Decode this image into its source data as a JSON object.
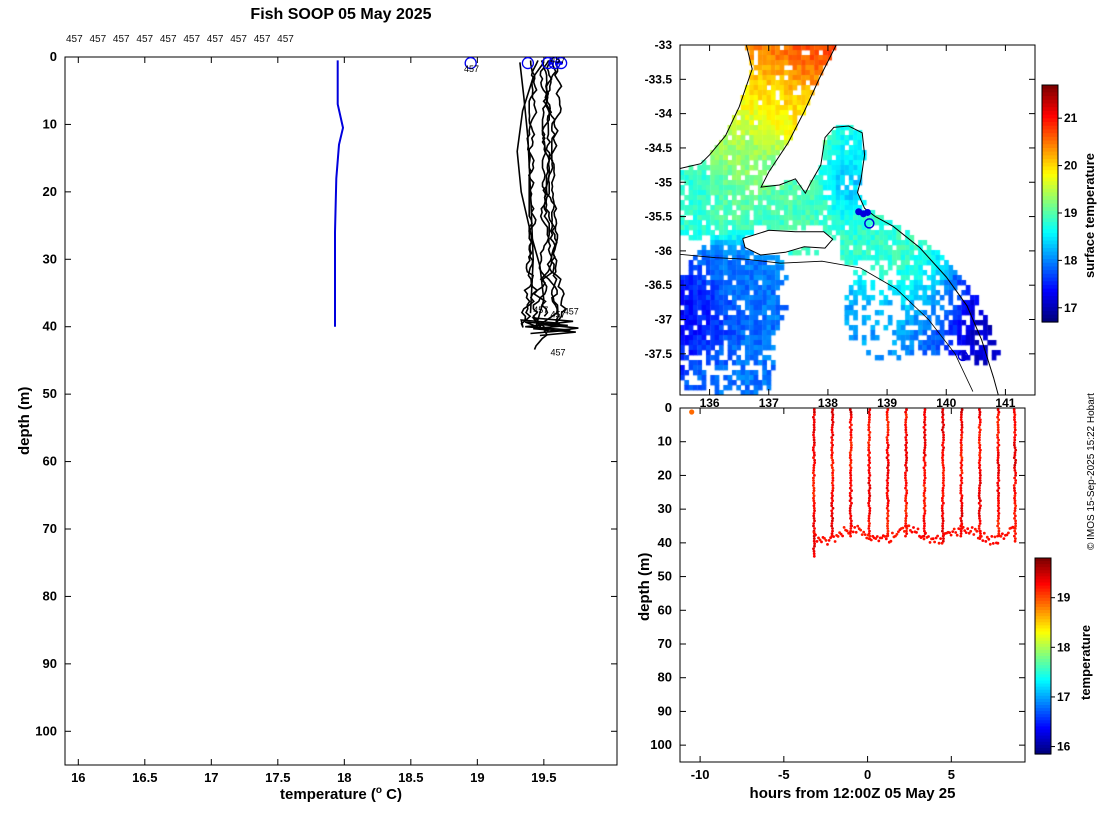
{
  "figure": {
    "title": "Fish SOOP 05 May 2025",
    "copyright": "© IMOS 15-Sep-2025 15:22 Hobart"
  },
  "chart_data": [
    {
      "id": "profile_plot",
      "type": "line",
      "title": "Fish SOOP 05 May 2025",
      "xlabel": "temperature (o C)",
      "xlabel_parts": {
        "pre": "temperature (",
        "sup": "o",
        "post": " C)"
      },
      "ylabel": "depth (m)",
      "xlim": [
        15.9,
        20.05
      ],
      "ylim": [
        0,
        105
      ],
      "xticks": [
        16,
        16.5,
        17,
        17.5,
        18,
        18.5,
        19,
        19.5
      ],
      "yticks": [
        0,
        10,
        20,
        30,
        40,
        50,
        60,
        70,
        80,
        90,
        100
      ],
      "top_labels_text": "457 457 457 457 457 457 457 457 457 457",
      "series": [
        {
          "name": "reference-ctd-profile",
          "color": "#0000dd",
          "points": [
            [
              17.95,
              0.5
            ],
            [
              17.95,
              7
            ],
            [
              17.99,
              10.5
            ],
            [
              17.96,
              13
            ],
            [
              17.94,
              18
            ],
            [
              17.93,
              26
            ],
            [
              17.93,
              40
            ]
          ]
        },
        {
          "name": "fish-soop-profiles",
          "color": "#000000",
          "random_profiles": [
            {
              "base": 19.4,
              "seed": 11,
              "maxdepth": 40.5,
              "tail": [
                19.33,
                19.62,
                19.36,
                19.7,
                19.4
              ]
            },
            {
              "base": 19.45,
              "seed": 22,
              "maxdepth": 39.5
            },
            {
              "base": 19.48,
              "seed": 33,
              "maxdepth": 40.8,
              "tail": [
                19.36,
                19.68,
                19.42,
                19.74,
                19.47
              ]
            },
            {
              "base": 19.52,
              "seed": 44,
              "maxdepth": 38.8
            },
            {
              "base": 19.55,
              "seed": 55,
              "maxdepth": 40.2,
              "tail": [
                19.42,
                19.72,
                19.5,
                19.76,
                19.55
              ]
            },
            {
              "base": 19.58,
              "seed": 66,
              "maxdepth": 43.5
            },
            {
              "base": 19.62,
              "seed": 77,
              "maxdepth": 39.8
            }
          ],
          "explicit_profiles": [
            {
              "points": [
                [
                  19.5,
                  0.8
                ],
                [
                  19.42,
                  3
                ],
                [
                  19.34,
                  8
                ],
                [
                  19.3,
                  14
                ],
                [
                  19.33,
                  20
                ],
                [
                  19.4,
                  26
                ],
                [
                  19.47,
                  31
                ],
                [
                  19.5,
                  36
                ],
                [
                  19.44,
                  40
                ]
              ]
            },
            {
              "points": [
                [
                  19.32,
                  0.8
                ],
                [
                  19.35,
                  6
                ],
                [
                  19.38,
                  12
                ],
                [
                  19.4,
                  20
                ],
                [
                  19.42,
                  30
                ],
                [
                  19.4,
                  38
                ]
              ]
            }
          ]
        }
      ],
      "markers": {
        "color": "#0000ee",
        "circles": [
          [
            18.95,
            0.9
          ],
          [
            19.38,
            0.9
          ],
          [
            19.53,
            0.9
          ],
          [
            19.58,
            0.9
          ],
          [
            19.63,
            0.9
          ]
        ],
        "dots": [
          [
            19.55,
            0.9
          ],
          [
            19.6,
            0.9
          ],
          [
            19.63,
            0.9
          ]
        ]
      },
      "annotations": [
        {
          "text": "457",
          "x": 18.9,
          "y": 2.2
        },
        {
          "text": "457",
          "x": 19.55,
          "y": 0.9
        },
        {
          "text": "457",
          "x": 19.42,
          "y": 38.0
        },
        {
          "text": "457",
          "x": 19.55,
          "y": 38.6
        },
        {
          "text": "457",
          "x": 19.65,
          "y": 38.2
        },
        {
          "text": "457",
          "x": 19.55,
          "y": 44.3
        }
      ]
    },
    {
      "id": "sst_map",
      "type": "heatmap",
      "xlim": [
        135.5,
        141.5
      ],
      "ylim": [
        -33.0,
        -38.1
      ],
      "xticks": [
        136,
        137,
        138,
        139,
        140,
        141
      ],
      "yticks": [
        -33,
        -33.5,
        -34,
        -34.5,
        -35,
        -35.5,
        -36,
        -36.5,
        -37,
        -37.5
      ],
      "colorbar": {
        "label": "surface temperature",
        "ticks": [
          17,
          18,
          19,
          20,
          21
        ],
        "range": [
          16.7,
          21.7
        ]
      },
      "marker_color": "#0000dd",
      "sst_blobs": [
        {
          "lon": 137.5,
          "lat": -33.05,
          "r": 0.5,
          "t": 20.7
        },
        {
          "lon": 137.15,
          "lat": -33.55,
          "r": 0.5,
          "t": 20.2
        },
        {
          "lon": 137.35,
          "lat": -34.1,
          "r": 0.5,
          "t": 19.9
        },
        {
          "lon": 136.9,
          "lat": -34.0,
          "r": 0.45,
          "t": 19.7
        },
        {
          "lon": 136.75,
          "lat": -34.55,
          "r": 0.45,
          "t": 19.3
        },
        {
          "lon": 137.1,
          "lat": -34.8,
          "r": 0.4,
          "t": 19.0
        },
        {
          "lon": 137.6,
          "lat": -35.35,
          "r": 0.45,
          "t": 18.9
        },
        {
          "lon": 138.3,
          "lat": -34.5,
          "r": 0.35,
          "t": 18.6
        },
        {
          "lon": 138.35,
          "lat": -35.0,
          "r": 0.35,
          "t": 18.3
        },
        {
          "lon": 138.9,
          "lat": -35.8,
          "r": 0.45,
          "t": 18.8
        },
        {
          "lon": 139.4,
          "lat": -36.25,
          "r": 0.55,
          "t": 18.9
        },
        {
          "lon": 139.9,
          "lat": -36.35,
          "r": 0.4,
          "t": 18.6
        },
        {
          "lon": 139.95,
          "lat": -36.75,
          "r": 0.5,
          "t": 17.7
        },
        {
          "lon": 140.35,
          "lat": -36.45,
          "r": 0.35,
          "t": 17.1
        },
        {
          "lon": 140.55,
          "lat": -37.0,
          "r": 0.4,
          "t": 17.0
        },
        {
          "lon": 139.0,
          "lat": -36.9,
          "r": 0.45,
          "t": 18.1
        },
        {
          "lon": 136.45,
          "lat": -36.6,
          "r": 0.55,
          "t": 17.9
        },
        {
          "lon": 135.85,
          "lat": -37.05,
          "r": 0.5,
          "t": 17.3
        },
        {
          "lon": 136.3,
          "lat": -37.6,
          "r": 0.5,
          "t": 17.9
        },
        {
          "lon": 135.75,
          "lat": -35.25,
          "r": 0.35,
          "t": 18.8
        },
        {
          "lon": 136.35,
          "lat": -35.35,
          "r": 0.35,
          "t": 19.0
        }
      ],
      "land_polygons": [
        [
          [
            135.5,
            -33.0
          ],
          [
            136.62,
            -33.0
          ],
          [
            136.72,
            -33.35
          ],
          [
            136.5,
            -33.9
          ],
          [
            136.27,
            -34.32
          ],
          [
            136.0,
            -34.6
          ],
          [
            135.85,
            -34.73
          ],
          [
            135.5,
            -34.8
          ]
        ],
        [
          [
            138.14,
            -33.0
          ],
          [
            141.5,
            -33.0
          ],
          [
            141.5,
            -38.1
          ],
          [
            141.05,
            -38.1
          ],
          [
            140.98,
            -37.75
          ],
          [
            140.78,
            -37.2
          ],
          [
            140.5,
            -36.65
          ],
          [
            140.18,
            -36.28
          ],
          [
            139.7,
            -35.9
          ],
          [
            139.15,
            -35.6
          ],
          [
            138.85,
            -35.47
          ],
          [
            138.68,
            -35.36
          ],
          [
            138.5,
            -35.15
          ],
          [
            138.56,
            -34.95
          ],
          [
            138.62,
            -34.6
          ],
          [
            138.58,
            -34.28
          ],
          [
            138.35,
            -34.18
          ],
          [
            138.1,
            -34.2
          ],
          [
            137.95,
            -34.35
          ],
          [
            137.88,
            -34.75
          ],
          [
            137.7,
            -35.02
          ],
          [
            137.62,
            -35.16
          ],
          [
            137.45,
            -34.95
          ],
          [
            137.18,
            -35.04
          ],
          [
            136.87,
            -35.07
          ],
          [
            137.0,
            -34.85
          ],
          [
            137.33,
            -34.42
          ],
          [
            137.6,
            -33.97
          ],
          [
            137.86,
            -33.48
          ]
        ],
        [
          [
            136.56,
            -35.82
          ],
          [
            137.0,
            -35.7
          ],
          [
            137.45,
            -35.72
          ],
          [
            137.93,
            -35.72
          ],
          [
            138.08,
            -35.83
          ],
          [
            137.95,
            -35.96
          ],
          [
            137.6,
            -35.94
          ],
          [
            137.28,
            -36.02
          ],
          [
            136.86,
            -36.06
          ],
          [
            136.6,
            -35.95
          ]
        ]
      ],
      "coastlines": [
        [
          [
            136.62,
            -33.0
          ],
          [
            136.72,
            -33.35
          ],
          [
            136.5,
            -33.9
          ],
          [
            136.27,
            -34.32
          ],
          [
            136.0,
            -34.6
          ],
          [
            135.85,
            -34.73
          ],
          [
            135.5,
            -34.8
          ]
        ],
        [
          [
            138.14,
            -33.0
          ],
          [
            137.86,
            -33.48
          ],
          [
            137.6,
            -33.97
          ],
          [
            137.33,
            -34.42
          ],
          [
            137.0,
            -34.85
          ],
          [
            136.87,
            -35.07
          ],
          [
            137.18,
            -35.04
          ],
          [
            137.45,
            -34.95
          ],
          [
            137.62,
            -35.16
          ],
          [
            137.7,
            -35.02
          ],
          [
            137.88,
            -34.75
          ],
          [
            137.95,
            -34.35
          ],
          [
            138.1,
            -34.2
          ],
          [
            138.35,
            -34.18
          ],
          [
            138.58,
            -34.28
          ],
          [
            138.62,
            -34.6
          ],
          [
            138.56,
            -34.95
          ],
          [
            138.5,
            -35.15
          ],
          [
            138.62,
            -35.38
          ],
          [
            138.8,
            -35.5
          ],
          [
            139.1,
            -35.64
          ],
          [
            139.55,
            -35.95
          ],
          [
            140.0,
            -36.38
          ],
          [
            140.35,
            -36.8
          ],
          [
            140.6,
            -37.3
          ],
          [
            140.8,
            -37.85
          ],
          [
            140.88,
            -38.1
          ]
        ]
      ],
      "shelf_contour": [
        [
          135.5,
          -36.05
        ],
        [
          136.1,
          -36.1
        ],
        [
          136.6,
          -36.12
        ],
        [
          137.2,
          -36.18
        ],
        [
          137.9,
          -36.15
        ],
        [
          138.55,
          -36.25
        ],
        [
          139.15,
          -36.55
        ],
        [
          139.7,
          -37.0
        ],
        [
          140.15,
          -37.5
        ],
        [
          140.45,
          -38.05
        ]
      ],
      "track_dots": [
        [
          138.52,
          -35.43
        ],
        [
          138.6,
          -35.46
        ],
        [
          138.67,
          -35.44
        ]
      ],
      "track_circles": [
        [
          138.7,
          -35.6
        ],
        [
          140.28,
          -37.53
        ]
      ]
    },
    {
      "id": "time_depth",
      "type": "scatter",
      "xlabel": "hours from 12:00Z 05 May 25",
      "ylabel": "depth (m)",
      "xlim": [
        -11.2,
        9.4
      ],
      "ylim": [
        0,
        105
      ],
      "xticks": [
        -10,
        -5,
        0,
        5
      ],
      "yticks": [
        0,
        10,
        20,
        30,
        40,
        50,
        60,
        70,
        80,
        90,
        100
      ],
      "colorbar": {
        "label": "temperature",
        "ticks": [
          16,
          17,
          18,
          19
        ],
        "range": [
          15.85,
          19.8
        ]
      },
      "cast_hours": [
        -3.2,
        -2.1,
        -1.0,
        0.1,
        1.2,
        2.3,
        3.4,
        4.5,
        5.6,
        6.7,
        7.8,
        8.8
      ],
      "cast_depth_top": 0.5,
      "cast_depth_bottom": 40,
      "first_cast_bottom": 44.5,
      "cast_temp": 19.3,
      "tow_depth": 37.5,
      "surface_dot": {
        "hour": -10.5,
        "depth": 1.2,
        "temp": 18.9
      }
    }
  ]
}
